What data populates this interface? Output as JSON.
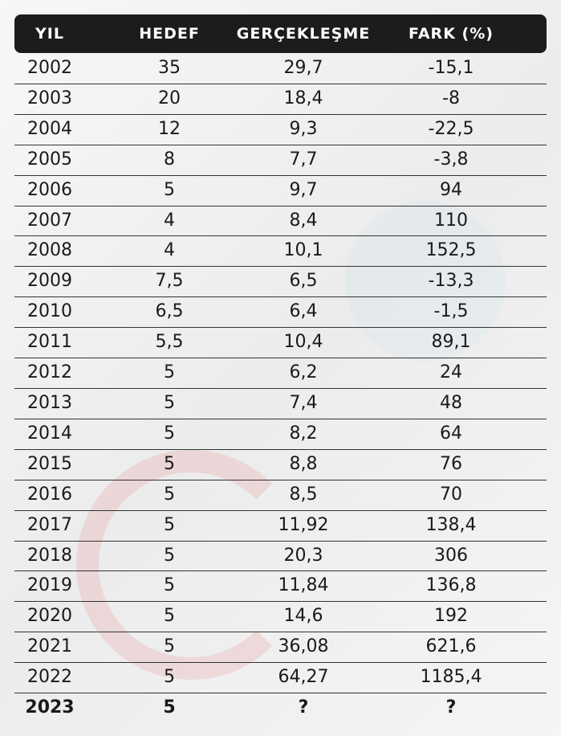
{
  "table": {
    "header": [
      "YIL",
      "HEDEF",
      "GERÇEKLEŞME",
      "FARK (%)"
    ],
    "rows": [
      [
        "2002",
        "35",
        "29,7",
        "-15,1"
      ],
      [
        "2003",
        "20",
        "18,4",
        "-8"
      ],
      [
        "2004",
        "12",
        "9,3",
        "-22,5"
      ],
      [
        "2005",
        "8",
        "7,7",
        "-3,8"
      ],
      [
        "2006",
        "5",
        "9,7",
        "94"
      ],
      [
        "2007",
        "4",
        "8,4",
        "110"
      ],
      [
        "2008",
        "4",
        "10,1",
        "152,5"
      ],
      [
        "2009",
        "7,5",
        "6,5",
        "-13,3"
      ],
      [
        "2010",
        "6,5",
        "6,4",
        "-1,5"
      ],
      [
        "2011",
        "5,5",
        "10,4",
        "89,1"
      ],
      [
        "2012",
        "5",
        "6,2",
        "24"
      ],
      [
        "2013",
        "5",
        "7,4",
        "48"
      ],
      [
        "2014",
        "5",
        "8,2",
        "64"
      ],
      [
        "2015",
        "5",
        "8,8",
        "76"
      ],
      [
        "2016",
        "5",
        "8,5",
        "70"
      ],
      [
        "2017",
        "5",
        "11,92",
        "138,4"
      ],
      [
        "2018",
        "5",
        "20,3",
        "306"
      ],
      [
        "2019",
        "5",
        "11,84",
        "136,8"
      ],
      [
        "2020",
        "5",
        "14,6",
        "192"
      ],
      [
        "2021",
        "5",
        "36,08",
        "621,6"
      ],
      [
        "2022",
        "5",
        "64,27",
        "1185,4"
      ],
      [
        "2023",
        "5",
        "?",
        "?"
      ]
    ]
  }
}
